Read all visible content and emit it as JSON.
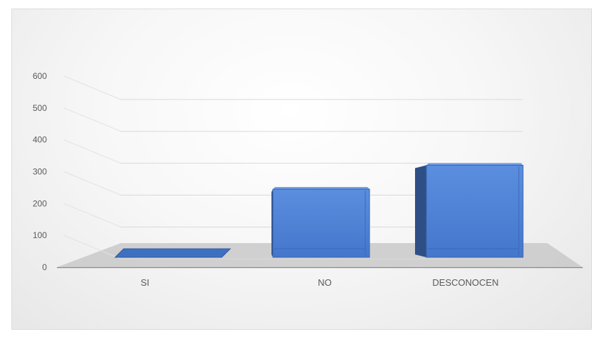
{
  "chart_data": {
    "type": "bar",
    "categories": [
      "SI",
      "NO",
      "DESCONOCEN"
    ],
    "values": [
      5,
      245,
      320
    ],
    "ylim": [
      0,
      600
    ],
    "yticks": [
      0,
      100,
      200,
      300,
      400,
      500,
      600
    ],
    "bar_color": "#4f81d3",
    "grid": true
  }
}
